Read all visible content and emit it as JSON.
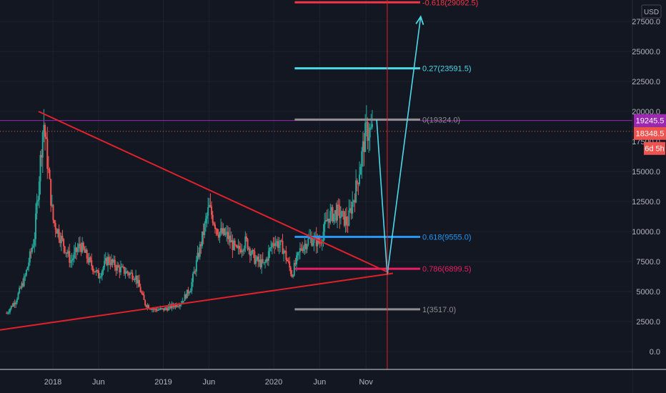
{
  "currency": "USD",
  "colors": {
    "background": "#131722",
    "grid": "#1e222d",
    "axis_text": "#b2b5be",
    "candle_up": "#26a69a",
    "candle_down": "#ef5350",
    "triangle": "#e0212b",
    "projection": "#4dd8e8",
    "resistance": "#9c27b0",
    "last_price": "#ef5350",
    "time_marker": "#e0212b"
  },
  "price_tags": [
    {
      "label": "19245.5",
      "color": "#9c27b0"
    },
    {
      "label": "18348.5",
      "color": "#ef5350"
    },
    {
      "label": "6d 5h",
      "color": "#ef5350"
    }
  ],
  "chart_data": {
    "type": "candlestick",
    "y_unit": "USD",
    "ylim": [
      -1000,
      28000
    ],
    "y_ticks": [
      "0.0",
      "2500.0",
      "5000.0",
      "7500.0",
      "10000.0",
      "12500.0",
      "15000.0",
      "17500.0",
      "20000.0",
      "22500.0",
      "25000.0",
      "27500.0"
    ],
    "x_ticks": [
      "2018",
      "Jun",
      "2019",
      "Jun",
      "2020",
      "Jun",
      "Nov"
    ],
    "x_start": "2017-08",
    "x_end": "2021-11",
    "close_path": [
      {
        "date": "2017-08",
        "price": 3200
      },
      {
        "date": "2017-09",
        "price": 4300
      },
      {
        "date": "2017-10",
        "price": 6200
      },
      {
        "date": "2017-11",
        "price": 9500
      },
      {
        "date": "2017-12",
        "price": 19300
      },
      {
        "date": "2018-01",
        "price": 11000
      },
      {
        "date": "2018-02",
        "price": 9200
      },
      {
        "date": "2018-03",
        "price": 7500
      },
      {
        "date": "2018-04",
        "price": 8900
      },
      {
        "date": "2018-05",
        "price": 7500
      },
      {
        "date": "2018-06",
        "price": 6300
      },
      {
        "date": "2018-07",
        "price": 7700
      },
      {
        "date": "2018-08",
        "price": 7000
      },
      {
        "date": "2018-09",
        "price": 6600
      },
      {
        "date": "2018-10",
        "price": 6300
      },
      {
        "date": "2018-11",
        "price": 4000
      },
      {
        "date": "2018-12",
        "price": 3500
      },
      {
        "date": "2019-01",
        "price": 3500
      },
      {
        "date": "2019-02",
        "price": 3800
      },
      {
        "date": "2019-03",
        "price": 4100
      },
      {
        "date": "2019-04",
        "price": 5300
      },
      {
        "date": "2019-05",
        "price": 8500
      },
      {
        "date": "2019-06",
        "price": 12000
      },
      {
        "date": "2019-07",
        "price": 10000
      },
      {
        "date": "2019-08",
        "price": 9600
      },
      {
        "date": "2019-09",
        "price": 8300
      },
      {
        "date": "2019-10",
        "price": 9200
      },
      {
        "date": "2019-11",
        "price": 7600
      },
      {
        "date": "2019-12",
        "price": 7200
      },
      {
        "date": "2020-01",
        "price": 9300
      },
      {
        "date": "2020-02",
        "price": 8600
      },
      {
        "date": "2020-03",
        "price": 6400
      },
      {
        "date": "2020-04",
        "price": 8700
      },
      {
        "date": "2020-05",
        "price": 9400
      },
      {
        "date": "2020-06",
        "price": 9100
      },
      {
        "date": "2020-07",
        "price": 11300
      },
      {
        "date": "2020-08",
        "price": 11600
      },
      {
        "date": "2020-09",
        "price": 10700
      },
      {
        "date": "2020-10",
        "price": 13800
      },
      {
        "date": "2020-11",
        "price": 18348.5
      }
    ],
    "fibonacci_levels": [
      {
        "label": "-0.618(29092.5)",
        "price": 29092.5,
        "color": "#f23645"
      },
      {
        "label": "0.27(23591.5)",
        "price": 23591.5,
        "color": "#4dd8e8"
      },
      {
        "label": "0(19324.0)",
        "price": 19324.0,
        "color": "#8f8f8f"
      },
      {
        "label": "0.618(9555.0)",
        "price": 9555.0,
        "color": "#2196f3"
      },
      {
        "label": "0.786(6899.5)",
        "price": 6899.5,
        "color": "#e91e63"
      },
      {
        "label": "1(3517.0)",
        "price": 3517.0,
        "color": "#8f8f8f"
      }
    ],
    "fib_range": {
      "start": "2020-03",
      "end": "2021-04"
    },
    "resistance_line": {
      "price": 19245.5
    },
    "last_price_line": {
      "price": 18348.5
    },
    "time_marker": {
      "date": "2021-01"
    },
    "triangle_upper": [
      {
        "date": "2017-12",
        "price": 20000
      },
      {
        "date": "2021-01",
        "price": 6400
      }
    ],
    "triangle_lower": [
      {
        "date": "2017-08",
        "price": 1800
      },
      {
        "date": "2021-01",
        "price": 6400
      }
    ],
    "projection_path": [
      {
        "date": "2020-11",
        "price": 19324.0
      },
      {
        "date": "2021-01",
        "price": 6400
      },
      {
        "date": "2021-05",
        "price": 27900
      }
    ]
  }
}
